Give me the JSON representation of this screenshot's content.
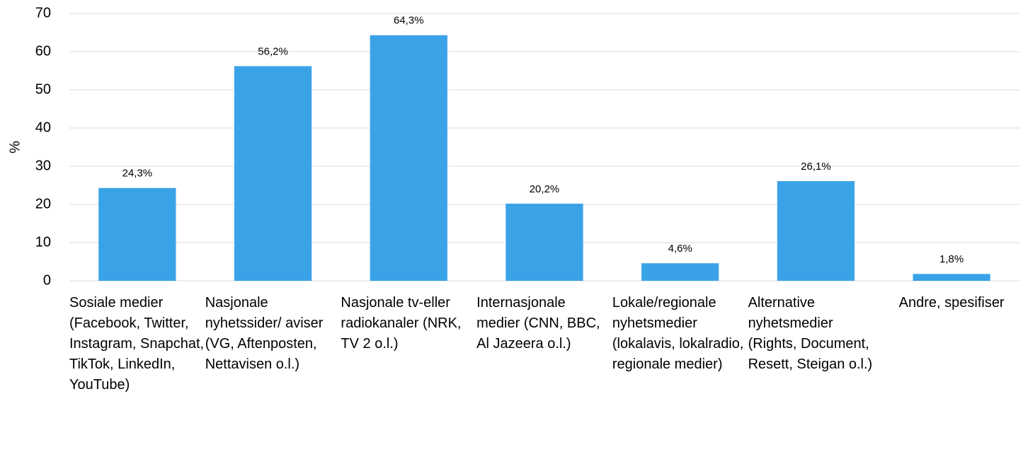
{
  "chart_data": {
    "type": "bar",
    "ylabel": "%",
    "categories": [
      "Sosiale medier (Facebook, Twitter, Instagram, Snapchat, TikTok, LinkedIn, YouTube)",
      "Nasjonale nyhetssider/ aviser (VG, Aftenposten, Nettavisen o.l.)",
      "Nasjonale tv-eller radiokanaler (NRK, TV 2 o.l.)",
      "Internasjonale medier (CNN, BBC, Al Jazeera o.l.)",
      "Lokale/regionale nyhetsmedier (lokalavis, lokalradio, regionale medier)",
      "Alternative nyhetsmedier (Rights, Document, Resett, Steigan o.l.)",
      "Andre, spesifiser"
    ],
    "values": [
      24.3,
      56.2,
      64.3,
      20.2,
      4.6,
      26.1,
      1.8
    ],
    "value_labels": [
      "24,3%",
      "56,2%",
      "64,3%",
      "20,2%",
      "4,6%",
      "26,1%",
      "1,8%"
    ],
    "color": "#3aa3e8",
    "ylim": [
      0,
      70
    ],
    "yticks": [
      0,
      10,
      20,
      30,
      40,
      50,
      60,
      70
    ],
    "grid": true
  }
}
